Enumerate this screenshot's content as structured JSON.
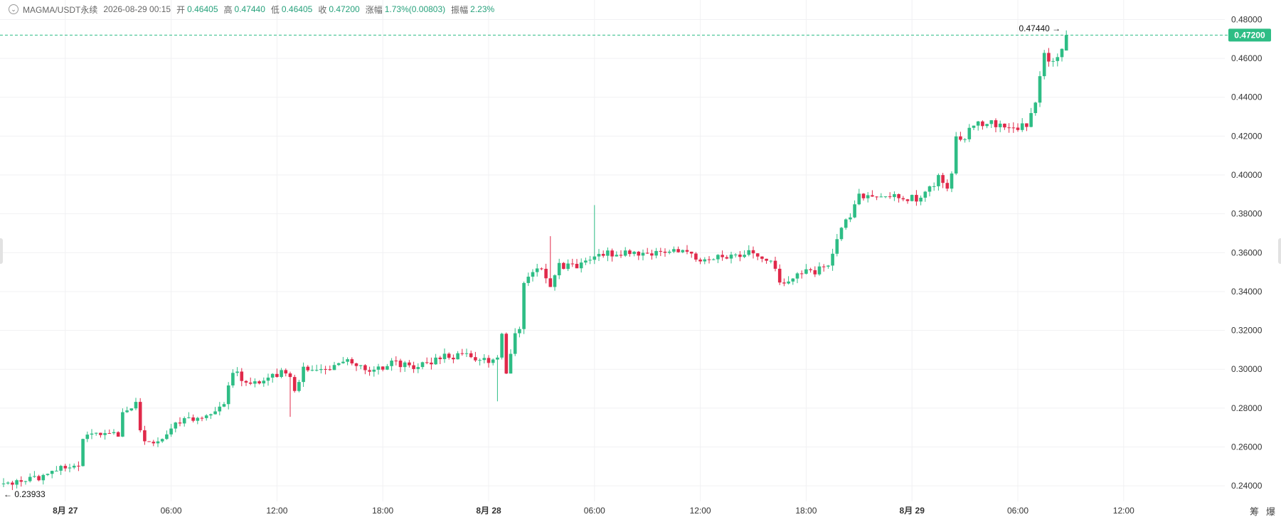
{
  "header": {
    "symbol": "MAGMA/USDT永续",
    "datetime": "2026-08-29 00:15",
    "open_label": "开",
    "open_value": "0.46405",
    "high_label": "高",
    "high_value": "0.47440",
    "low_label": "低",
    "low_value": "0.46405",
    "close_label": "收",
    "close_value": "0.47200",
    "change_label": "涨幅",
    "change_value": "1.73%(0.00803)",
    "amplitude_label": "振幅",
    "amplitude_value": "2.23%"
  },
  "corner_tools": [
    "筹",
    "爆"
  ],
  "chart_data": {
    "type": "candlestick",
    "interval_minutes": 15,
    "start_time": "2026-08-26 20:30",
    "ylim": [
      0.232,
      0.482
    ],
    "yticks": [
      "0.48000",
      "0.46000",
      "0.44000",
      "0.42000",
      "0.40000",
      "0.38000",
      "0.36000",
      "0.34000",
      "0.32000",
      "0.30000",
      "0.28000",
      "0.26000",
      "0.24000"
    ],
    "xticks": [
      {
        "label": "8月 27",
        "time": "2026-08-27 00:00",
        "bold": true
      },
      {
        "label": "06:00",
        "time": "2026-08-27 06:00"
      },
      {
        "label": "12:00",
        "time": "2026-08-27 12:00"
      },
      {
        "label": "18:00",
        "time": "2026-08-27 18:00"
      },
      {
        "label": "8月 28",
        "time": "2026-08-28 00:00",
        "bold": true
      },
      {
        "label": "06:00",
        "time": "2026-08-28 06:00"
      },
      {
        "label": "12:00",
        "time": "2026-08-28 12:00"
      },
      {
        "label": "18:00",
        "time": "2026-08-28 18:00"
      },
      {
        "label": "8月 29",
        "time": "2026-08-29 00:00",
        "bold": true
      },
      {
        "label": "06:00",
        "time": "2026-08-29 06:00"
      },
      {
        "label": "12:00",
        "time": "2026-08-29 12:00"
      }
    ],
    "last_price": "0.47200",
    "last_price_value": 0.472,
    "high_annotation": {
      "label": "0.47440",
      "value": 0.4744
    },
    "low_annotation": {
      "label": "0.23933",
      "value": 0.23933
    },
    "anchors": [
      [
        0,
        0.2412
      ],
      [
        8,
        0.2445
      ],
      [
        12,
        0.2495
      ],
      [
        17,
        0.2498
      ],
      [
        18,
        0.2645
      ],
      [
        22,
        0.2665
      ],
      [
        26,
        0.2665
      ],
      [
        27,
        0.279
      ],
      [
        30,
        0.282
      ],
      [
        31,
        0.269
      ],
      [
        32,
        0.2625
      ],
      [
        36,
        0.2645
      ],
      [
        40,
        0.2735
      ],
      [
        48,
        0.2775
      ],
      [
        50,
        0.2815
      ],
      [
        52,
        0.299
      ],
      [
        54,
        0.2955
      ],
      [
        58,
        0.2925
      ],
      [
        64,
        0.2995
      ],
      [
        66,
        0.2895
      ],
      [
        68,
        0.3005
      ],
      [
        74,
        0.3005
      ],
      [
        78,
        0.3035
      ],
      [
        84,
        0.2985
      ],
      [
        88,
        0.3035
      ],
      [
        94,
        0.3015
      ],
      [
        100,
        0.3065
      ],
      [
        106,
        0.3065
      ],
      [
        110,
        0.3035
      ],
      [
        112,
        0.3075
      ],
      [
        113,
        0.3195
      ],
      [
        114,
        0.2985
      ],
      [
        116,
        0.3195
      ],
      [
        117,
        0.3195
      ],
      [
        118,
        0.3435
      ],
      [
        120,
        0.3495
      ],
      [
        122,
        0.3525
      ],
      [
        124,
        0.3435
      ],
      [
        126,
        0.3535
      ],
      [
        130,
        0.3525
      ],
      [
        136,
        0.3595
      ],
      [
        140,
        0.3595
      ],
      [
        146,
        0.3595
      ],
      [
        154,
        0.3615
      ],
      [
        158,
        0.3545
      ],
      [
        164,
        0.3585
      ],
      [
        170,
        0.3605
      ],
      [
        174,
        0.3565
      ],
      [
        176,
        0.3435
      ],
      [
        180,
        0.3495
      ],
      [
        184,
        0.3505
      ],
      [
        187,
        0.3535
      ],
      [
        189,
        0.3675
      ],
      [
        192,
        0.3795
      ],
      [
        194,
        0.3895
      ],
      [
        198,
        0.3895
      ],
      [
        204,
        0.3885
      ],
      [
        208,
        0.3875
      ],
      [
        212,
        0.3985
      ],
      [
        214,
        0.3915
      ],
      [
        215,
        0.4005
      ],
      [
        216,
        0.4195
      ],
      [
        218,
        0.4195
      ],
      [
        220,
        0.4265
      ],
      [
        224,
        0.4265
      ],
      [
        226,
        0.4255
      ],
      [
        228,
        0.4235
      ],
      [
        232,
        0.4255
      ],
      [
        234,
        0.4375
      ],
      [
        236,
        0.4615
      ],
      [
        238,
        0.4575
      ],
      [
        239,
        0.4595
      ],
      [
        240,
        0.464
      ],
      [
        241,
        0.472
      ]
    ]
  }
}
